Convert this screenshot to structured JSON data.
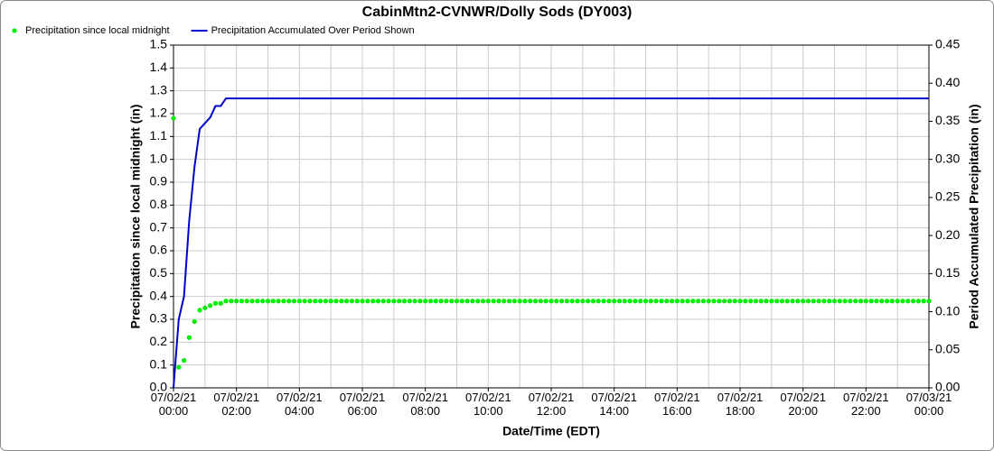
{
  "chart_data": {
    "type": "line",
    "title": "CabinMtn2-CVNWR/Dolly Sods (DY003)",
    "xlabel": "Date/Time (EDT)",
    "ylabel": "Precipitation since local midnight (in)",
    "y2label": "Period Accumulated Precipitation (in)",
    "xlim": [
      0,
      1440
    ],
    "xticks": [
      {
        "value": 0,
        "label": "07/02/21 00:00"
      },
      {
        "value": 120,
        "label": "07/02/21 02:00"
      },
      {
        "value": 240,
        "label": "07/02/21 04:00"
      },
      {
        "value": 360,
        "label": "07/02/21 06:00"
      },
      {
        "value": 480,
        "label": "07/02/21 08:00"
      },
      {
        "value": 600,
        "label": "07/02/21 10:00"
      },
      {
        "value": 720,
        "label": "07/02/21 12:00"
      },
      {
        "value": 840,
        "label": "07/02/21 14:00"
      },
      {
        "value": 960,
        "label": "07/02/21 16:00"
      },
      {
        "value": 1080,
        "label": "07/02/21 18:00"
      },
      {
        "value": 1200,
        "label": "07/02/21 20:00"
      },
      {
        "value": 1320,
        "label": "07/02/21 22:00"
      },
      {
        "value": 1440,
        "label": "07/03/21 00:00"
      }
    ],
    "x_grid_step": 60,
    "ylim": [
      0,
      1.5
    ],
    "yticks": [
      {
        "value": 0,
        "label": "0.0"
      },
      0.1,
      0.2,
      0.3,
      0.4,
      0.5,
      0.6,
      0.7,
      0.8,
      0.9,
      {
        "value": 1,
        "label": "1.0"
      },
      1.1,
      1.2,
      1.3,
      1.4,
      1.5
    ],
    "y2lim": [
      0,
      0.45
    ],
    "y2ticks": [
      {
        "value": 0,
        "label": "0.00"
      },
      0.05,
      {
        "value": 0.1,
        "label": "0.10"
      },
      0.15,
      {
        "value": 0.2,
        "label": "0.20"
      },
      0.25,
      {
        "value": 0.3,
        "label": "0.30"
      },
      0.35,
      {
        "value": 0.4,
        "label": "0.40"
      },
      0.45
    ],
    "grid": true,
    "series": [
      {
        "name": "Precipitation since local midnight",
        "color": "#00ee00",
        "style": "dots",
        "x": [
          0,
          10,
          20,
          30,
          40,
          50,
          60,
          70,
          80,
          90,
          100,
          110,
          120,
          130,
          140,
          150,
          160,
          170,
          180,
          190,
          200,
          210,
          220,
          230,
          240,
          250,
          260,
          270,
          280,
          290,
          300,
          310,
          320,
          330,
          340,
          350,
          360,
          370,
          380,
          390,
          400,
          410,
          420,
          430,
          440,
          450,
          460,
          470,
          480,
          490,
          500,
          510,
          520,
          530,
          540,
          550,
          560,
          570,
          580,
          590,
          600,
          610,
          620,
          630,
          640,
          650,
          660,
          670,
          680,
          690,
          700,
          710,
          720,
          730,
          740,
          750,
          760,
          770,
          780,
          790,
          800,
          810,
          820,
          830,
          840,
          850,
          860,
          870,
          880,
          890,
          900,
          910,
          920,
          930,
          940,
          950,
          960,
          970,
          980,
          990,
          1000,
          1010,
          1020,
          1030,
          1040,
          1050,
          1060,
          1070,
          1080,
          1090,
          1100,
          1110,
          1120,
          1130,
          1140,
          1150,
          1160,
          1170,
          1180,
          1190,
          1200,
          1210,
          1220,
          1230,
          1240,
          1250,
          1260,
          1270,
          1280,
          1290,
          1300,
          1310,
          1320,
          1330,
          1340,
          1350,
          1360,
          1370,
          1380,
          1390,
          1400,
          1410,
          1420,
          1430,
          1440
        ],
        "values": [
          1.18,
          0.09,
          0.12,
          0.22,
          0.29,
          0.34,
          0.35,
          0.36,
          0.37,
          0.37,
          0.38,
          0.38,
          0.38,
          0.38,
          0.38,
          0.38,
          0.38,
          0.38,
          0.38,
          0.38,
          0.38,
          0.38,
          0.38,
          0.38,
          0.38,
          0.38,
          0.38,
          0.38,
          0.38,
          0.38,
          0.38,
          0.38,
          0.38,
          0.38,
          0.38,
          0.38,
          0.38,
          0.38,
          0.38,
          0.38,
          0.38,
          0.38,
          0.38,
          0.38,
          0.38,
          0.38,
          0.38,
          0.38,
          0.38,
          0.38,
          0.38,
          0.38,
          0.38,
          0.38,
          0.38,
          0.38,
          0.38,
          0.38,
          0.38,
          0.38,
          0.38,
          0.38,
          0.38,
          0.38,
          0.38,
          0.38,
          0.38,
          0.38,
          0.38,
          0.38,
          0.38,
          0.38,
          0.38,
          0.38,
          0.38,
          0.38,
          0.38,
          0.38,
          0.38,
          0.38,
          0.38,
          0.38,
          0.38,
          0.38,
          0.38,
          0.38,
          0.38,
          0.38,
          0.38,
          0.38,
          0.38,
          0.38,
          0.38,
          0.38,
          0.38,
          0.38,
          0.38,
          0.38,
          0.38,
          0.38,
          0.38,
          0.38,
          0.38,
          0.38,
          0.38,
          0.38,
          0.38,
          0.38,
          0.38,
          0.38,
          0.38,
          0.38,
          0.38,
          0.38,
          0.38,
          0.38,
          0.38,
          0.38,
          0.38,
          0.38,
          0.38,
          0.38,
          0.38,
          0.38,
          0.38,
          0.38,
          0.38,
          0.38,
          0.38,
          0.38,
          0.38,
          0.38,
          0.38,
          0.38,
          0.38,
          0.38,
          0.38,
          0.38,
          0.38,
          0.38,
          0.38,
          0.38,
          0.38,
          0.38,
          0.38
        ]
      },
      {
        "name": "Precipitation Accumulated Over Period Shown",
        "color": "#0000cc",
        "style": "line",
        "axis": "y2",
        "x": [
          0,
          10,
          20,
          30,
          40,
          50,
          70,
          80,
          90,
          100,
          1440
        ],
        "values": [
          0,
          0.09,
          0.12,
          0.22,
          0.29,
          0.34,
          0.355,
          0.37,
          0.37,
          0.38,
          0.38
        ]
      }
    ]
  }
}
